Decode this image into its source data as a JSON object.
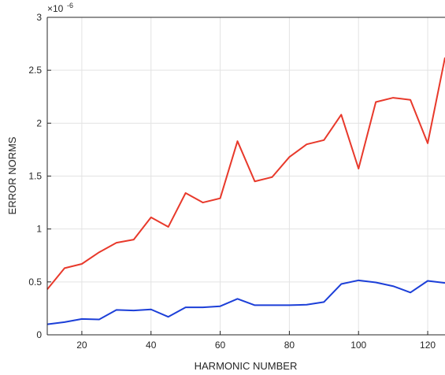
{
  "chart_data": {
    "type": "line",
    "title": "",
    "xlabel": "HARMONIC NUMBER",
    "ylabel": "ERROR NORMS",
    "xlim": [
      10,
      125
    ],
    "ylim": [
      0,
      3
    ],
    "y_exponent": {
      "base": "×10",
      "exp": "-6"
    },
    "grid": true,
    "xticks": [
      20,
      40,
      60,
      80,
      100,
      120
    ],
    "xtick_labels": [
      "20",
      "40",
      "60",
      "80",
      "100",
      "120"
    ],
    "yticks": [
      0,
      0.5,
      1,
      1.5,
      2,
      2.5,
      3
    ],
    "ytick_labels": [
      "0",
      "0.5",
      "1",
      "1.5",
      "2",
      "2.5",
      "3"
    ],
    "x": [
      10,
      15,
      20,
      25,
      30,
      35,
      40,
      45,
      50,
      55,
      60,
      65,
      70,
      75,
      80,
      85,
      90,
      95,
      100,
      105,
      110,
      115,
      120,
      125
    ],
    "series": [
      {
        "color": "#e8392b",
        "values": [
          0.43,
          0.63,
          0.67,
          0.78,
          0.87,
          0.9,
          1.11,
          1.02,
          1.34,
          1.25,
          1.29,
          1.83,
          1.45,
          1.49,
          1.68,
          1.8,
          1.84,
          2.08,
          1.57,
          2.2,
          2.24,
          2.22,
          1.81,
          2.62
        ]
      },
      {
        "color": "#1c3fd8",
        "values": [
          0.1,
          0.12,
          0.15,
          0.145,
          0.235,
          0.23,
          0.24,
          0.17,
          0.26,
          0.26,
          0.27,
          0.34,
          0.28,
          0.28,
          0.28,
          0.285,
          0.31,
          0.48,
          0.515,
          0.495,
          0.46,
          0.4,
          0.51,
          0.49
        ]
      }
    ]
  }
}
